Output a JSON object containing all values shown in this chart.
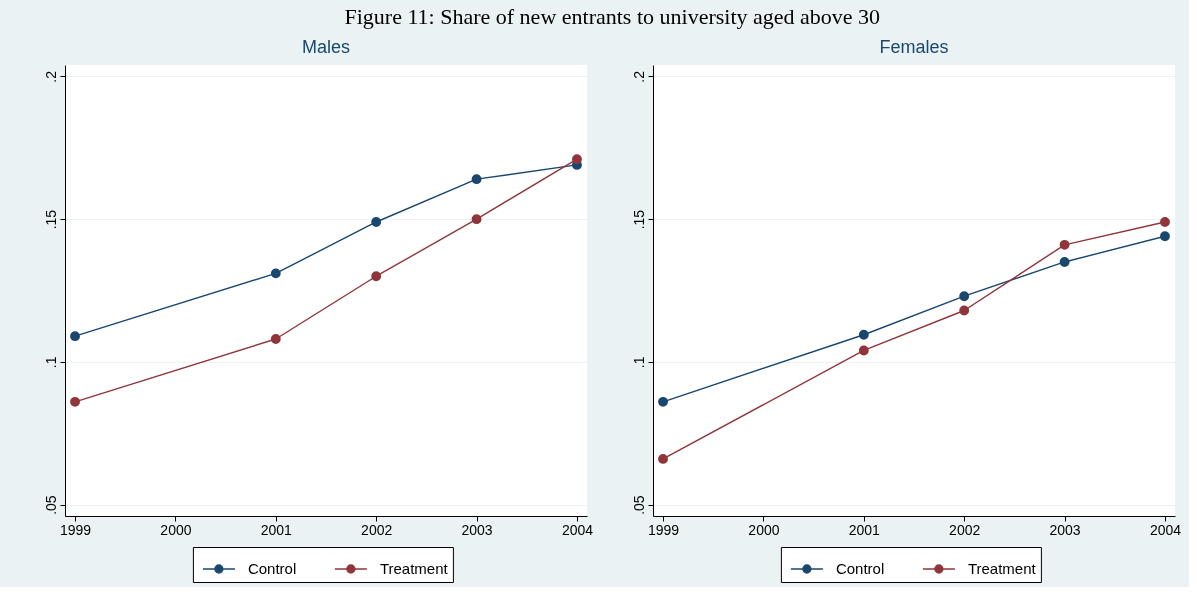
{
  "chart_data": [
    {
      "type": "line",
      "title": "Males",
      "annotations": [
        "Figure 11: Share of new entrants to university aged above 30"
      ],
      "x": [
        1999,
        2001,
        2002,
        2003,
        2004
      ],
      "series": [
        {
          "name": "Control",
          "color": "#1a476f",
          "values": [
            0.109,
            0.131,
            0.149,
            0.164,
            0.169
          ]
        },
        {
          "name": "Treatment",
          "color": "#90353b",
          "values": [
            0.086,
            0.108,
            0.13,
            0.15,
            0.171
          ]
        }
      ],
      "xlim": [
        1998.9,
        2004.1
      ],
      "xticks": [
        1999,
        2000,
        2001,
        2002,
        2003,
        2004
      ],
      "ylim": [
        0.046,
        0.204
      ],
      "yticks": [
        {
          "value": 0.05,
          "label": ".05"
        },
        {
          "value": 0.1,
          "label": ".1"
        },
        {
          "value": 0.15,
          "label": ".15"
        },
        {
          "value": 0.2,
          "label": ".2"
        }
      ],
      "grid": "y",
      "legend": "bottom",
      "marker": "circle",
      "line_style": "solid"
    },
    {
      "type": "line",
      "title": "Females",
      "x": [
        1999,
        2001,
        2002,
        2003,
        2004
      ],
      "series": [
        {
          "name": "Control",
          "color": "#1a476f",
          "values": [
            0.086,
            0.1095,
            0.123,
            0.135,
            0.144
          ]
        },
        {
          "name": "Treatment",
          "color": "#90353b",
          "values": [
            0.066,
            0.104,
            0.118,
            0.141,
            0.149
          ]
        }
      ],
      "xlim": [
        1998.9,
        2004.1
      ],
      "xticks": [
        1999,
        2000,
        2001,
        2002,
        2003,
        2004
      ],
      "ylim": [
        0.046,
        0.204
      ],
      "yticks": [
        {
          "value": 0.05,
          "label": ".05"
        },
        {
          "value": 0.1,
          "label": ".1"
        },
        {
          "value": 0.15,
          "label": ".15"
        },
        {
          "value": 0.2,
          "label": ".2"
        }
      ],
      "grid": "y",
      "legend": "bottom",
      "marker": "circle",
      "line_style": "solid"
    }
  ]
}
